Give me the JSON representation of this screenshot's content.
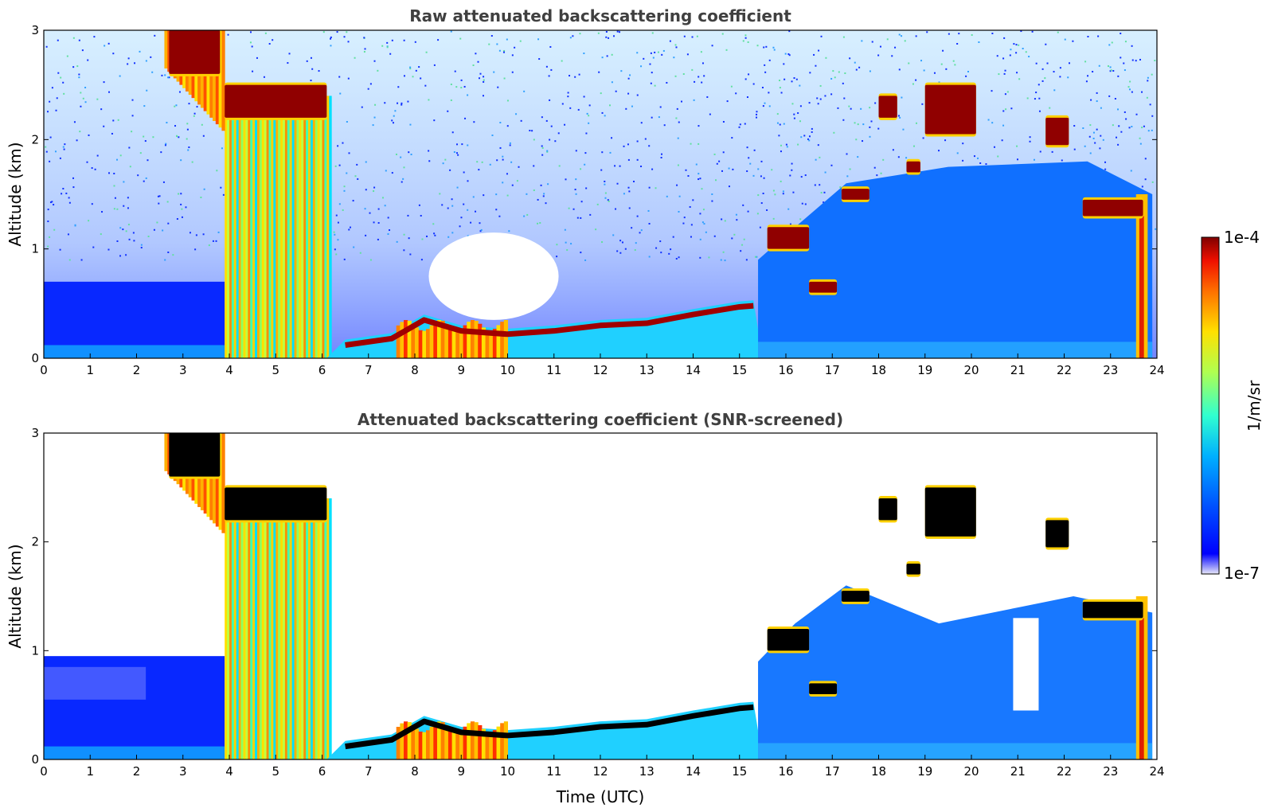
{
  "chart_data": [
    {
      "type": "heatmap",
      "title": "Raw attenuated backscattering coefficient",
      "xlabel": "",
      "ylabel": "Altitude (km)",
      "xlim": [
        0,
        24
      ],
      "ylim": [
        0,
        3
      ],
      "xticks": [
        "0",
        "1",
        "2",
        "3",
        "4",
        "5",
        "6",
        "7",
        "8",
        "9",
        "10",
        "11",
        "12",
        "13",
        "14",
        "15",
        "16",
        "17",
        "18",
        "19",
        "20",
        "21",
        "22",
        "23",
        "24"
      ],
      "yticks": [
        "0",
        "1",
        "2",
        "3"
      ],
      "screened": false,
      "boundary_layer_top_km": [
        {
          "t": 6.5,
          "z": 0.12
        },
        {
          "t": 7.5,
          "z": 0.18
        },
        {
          "t": 8.2,
          "z": 0.35
        },
        {
          "t": 9.0,
          "z": 0.25
        },
        {
          "t": 10.0,
          "z": 0.22
        },
        {
          "t": 11.0,
          "z": 0.25
        },
        {
          "t": 12.0,
          "z": 0.3
        },
        {
          "t": 13.0,
          "z": 0.32
        },
        {
          "t": 14.0,
          "z": 0.4
        },
        {
          "t": 15.0,
          "z": 0.47
        },
        {
          "t": 15.3,
          "z": 0.48
        }
      ],
      "cloud_segments": [
        {
          "t0": 2.7,
          "t1": 3.8,
          "z0": 2.6,
          "z1": 3.0
        },
        {
          "t0": 3.9,
          "t1": 6.1,
          "z0": 2.2,
          "z1": 2.5
        },
        {
          "t0": 15.6,
          "t1": 16.5,
          "z0": 1.0,
          "z1": 1.2
        },
        {
          "t0": 16.5,
          "t1": 17.1,
          "z0": 0.6,
          "z1": 0.7
        },
        {
          "t0": 17.2,
          "t1": 17.8,
          "z0": 1.45,
          "z1": 1.55
        },
        {
          "t0": 18.0,
          "t1": 18.4,
          "z0": 2.2,
          "z1": 2.4
        },
        {
          "t0": 18.6,
          "t1": 18.9,
          "z0": 1.7,
          "z1": 1.8
        },
        {
          "t0": 19.0,
          "t1": 20.1,
          "z0": 2.05,
          "z1": 2.5
        },
        {
          "t0": 21.6,
          "t1": 22.1,
          "z0": 1.95,
          "z1": 2.2
        },
        {
          "t0": 22.4,
          "t1": 23.7,
          "z0": 1.3,
          "z1": 1.45
        }
      ]
    },
    {
      "type": "heatmap",
      "title": "Attenuated backscattering coefficient (SNR-screened)",
      "xlabel": "Time (UTC)",
      "ylabel": "Altitude (km)",
      "xlim": [
        0,
        24
      ],
      "ylim": [
        0,
        3
      ],
      "xticks": [
        "0",
        "1",
        "2",
        "3",
        "4",
        "5",
        "6",
        "7",
        "8",
        "9",
        "10",
        "11",
        "12",
        "13",
        "14",
        "15",
        "16",
        "17",
        "18",
        "19",
        "20",
        "21",
        "22",
        "23",
        "24"
      ],
      "yticks": [
        "0",
        "1",
        "2",
        "3"
      ],
      "screened": true
    }
  ],
  "colorbar": {
    "label": "1/m/sr",
    "max_label": "1e-4",
    "min_label": "1e-7",
    "colors": [
      "#e8e8f8",
      "#0000ff",
      "#0080ff",
      "#00e0ff",
      "#40ffb0",
      "#c0ff40",
      "#ffe000",
      "#ff8000",
      "#ff1000",
      "#800000"
    ]
  }
}
